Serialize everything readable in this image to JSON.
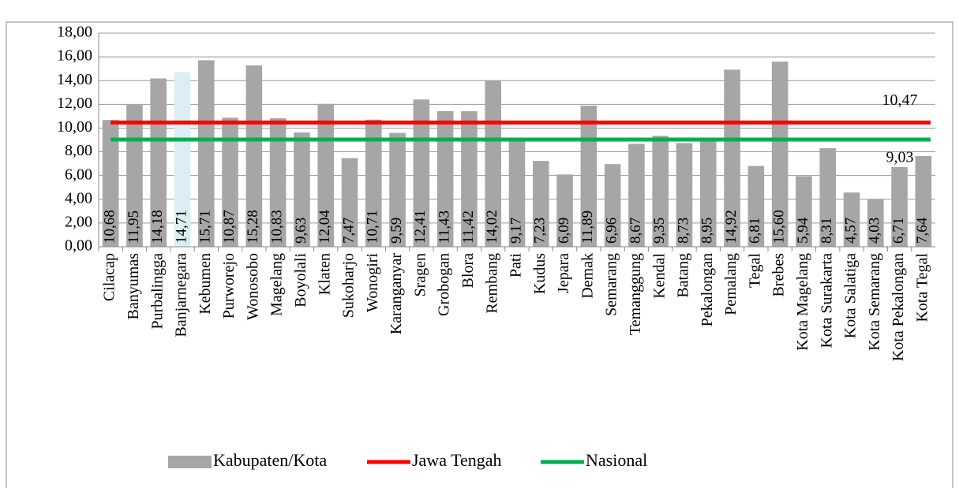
{
  "chart_data": {
    "type": "bar",
    "categories": [
      "Cilacap",
      "Banyumas",
      "Purbalingga",
      "Banjarnegara",
      "Kebumen",
      "Purworejo",
      "Wonosobo",
      "Magelang",
      "Boyolali",
      "Klaten",
      "Sukoharjo",
      "Wonogiri",
      "Karanganyar",
      "Sragen",
      "Grobogan",
      "Blora",
      "Rembang",
      "Pati",
      "Kudus",
      "Jepara",
      "Demak",
      "Semarang",
      "Temanggung",
      "Kendal",
      "Batang",
      "Pekalongan",
      "Pemalang",
      "Tegal",
      "Brebes",
      "Kota Magelang",
      "Kota Surakarta",
      "Kota Salatiga",
      "Kota Semarang",
      "Kota Pekalongan",
      "Kota Tegal"
    ],
    "series": [
      {
        "name": "Kabupaten/Kota",
        "colors": [
          "#a6a6a6",
          "#a6a6a6",
          "#a6a6a6",
          "#daeef3",
          "#a6a6a6",
          "#a6a6a6",
          "#a6a6a6",
          "#a6a6a6",
          "#a6a6a6",
          "#a6a6a6",
          "#a6a6a6",
          "#a6a6a6",
          "#a6a6a6",
          "#a6a6a6",
          "#a6a6a6",
          "#a6a6a6",
          "#a6a6a6",
          "#a6a6a6",
          "#a6a6a6",
          "#a6a6a6",
          "#a6a6a6",
          "#a6a6a6",
          "#a6a6a6",
          "#a6a6a6",
          "#a6a6a6",
          "#a6a6a6",
          "#a6a6a6",
          "#a6a6a6",
          "#a6a6a6",
          "#a6a6a6",
          "#a6a6a6",
          "#a6a6a6",
          "#a6a6a6",
          "#a6a6a6",
          "#a6a6a6"
        ],
        "values": [
          10.68,
          11.95,
          14.18,
          14.71,
          15.71,
          10.87,
          15.28,
          10.83,
          9.63,
          12.04,
          7.47,
          10.71,
          9.59,
          12.41,
          11.43,
          11.42,
          14.02,
          9.17,
          7.23,
          6.09,
          11.89,
          6.96,
          8.67,
          9.35,
          8.73,
          8.95,
          14.92,
          6.81,
          15.6,
          5.94,
          8.31,
          4.57,
          4.03,
          6.71,
          7.64
        ],
        "value_labels": [
          "10,68",
          "11,95",
          "14,18",
          "14,71",
          "15,71",
          "10,87",
          "15,28",
          "10,83",
          "9,63",
          "12,04",
          "7,47",
          "10,71",
          "9,59",
          "12,41",
          "11,43",
          "11,42",
          "14,02",
          "9,17",
          "7,23",
          "6,09",
          "11,89",
          "6,96",
          "8,67",
          "9,35",
          "8,73",
          "8,95",
          "14,92",
          "6,81",
          "15,60",
          "5,94",
          "8,31",
          "4,57",
          "4,03",
          "6,71",
          "7,64"
        ]
      },
      {
        "name": "Jawa Tengah",
        "type": "line",
        "color": "#ff0000",
        "value": 10.47,
        "value_label": "10,47"
      },
      {
        "name": "Nasional",
        "type": "line",
        "color": "#00b050",
        "value": 9.03,
        "value_label": "9,03"
      }
    ],
    "ylim": [
      0,
      18
    ],
    "yticks": [
      {
        "value": 0,
        "label": "0,00"
      },
      {
        "value": 2,
        "label": "2,00"
      },
      {
        "value": 4,
        "label": "4,00"
      },
      {
        "value": 6,
        "label": "6,00"
      },
      {
        "value": 8,
        "label": "8,00"
      },
      {
        "value": 10,
        "label": "10,00"
      },
      {
        "value": 12,
        "label": "12,00"
      },
      {
        "value": 14,
        "label": "14,00"
      },
      {
        "value": 16,
        "label": "16,00"
      },
      {
        "value": 18,
        "label": "18,00"
      }
    ],
    "grid": true,
    "legend": "bottom"
  }
}
